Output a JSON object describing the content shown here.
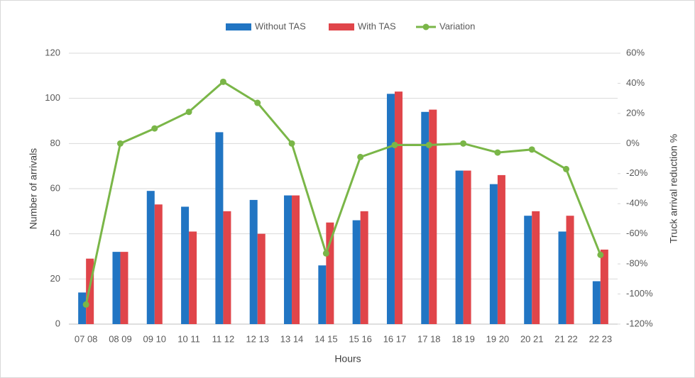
{
  "chart_data": {
    "type": "bar",
    "categories": [
      "07 08",
      "08 09",
      "09 10",
      "10 11",
      "11 12",
      "12 13",
      "13 14",
      "14 15",
      "15 16",
      "16 17",
      "17 18",
      "18 19",
      "19 20",
      "20 21",
      "21 22",
      "22 23"
    ],
    "series": [
      {
        "name": "Without TAS",
        "color": "#2175c3",
        "values": [
          14,
          32,
          59,
          52,
          85,
          55,
          57,
          26,
          46,
          102,
          94,
          68,
          62,
          48,
          41,
          19
        ]
      },
      {
        "name": "With TAS",
        "color": "#e0454a",
        "values": [
          29,
          32,
          53,
          41,
          50,
          40,
          57,
          45,
          50,
          103,
          95,
          68,
          66,
          50,
          48,
          33
        ]
      },
      {
        "name": "Variation",
        "color": "#7ab648",
        "type": "line",
        "axis": "y2",
        "values": [
          -107,
          0,
          10,
          21,
          41,
          27,
          0,
          -73,
          -9,
          -1,
          -1,
          0,
          -6,
          -4,
          -17,
          -74
        ]
      }
    ],
    "x_label": "Hours",
    "y_label": "Number of arrivals",
    "y2_label": "Truck arrival reduction %",
    "ylim": [
      0,
      120
    ],
    "yticks": [
      0,
      20,
      40,
      60,
      80,
      100,
      120
    ],
    "y2lim": [
      -120,
      60
    ],
    "y2ticks": [
      {
        "value": -120,
        "label": "-120%"
      },
      {
        "value": -100,
        "label": "-100%"
      },
      {
        "value": -80,
        "label": "-80%"
      },
      {
        "value": -60,
        "label": "-60%"
      },
      {
        "value": -40,
        "label": "-40%"
      },
      {
        "value": -20,
        "label": "-20%"
      },
      {
        "value": 0,
        "label": "0%"
      },
      {
        "value": 20,
        "label": "20%"
      },
      {
        "value": 40,
        "label": "40%"
      },
      {
        "value": 60,
        "label": "60%"
      }
    ],
    "grid": true,
    "legend": "top"
  }
}
